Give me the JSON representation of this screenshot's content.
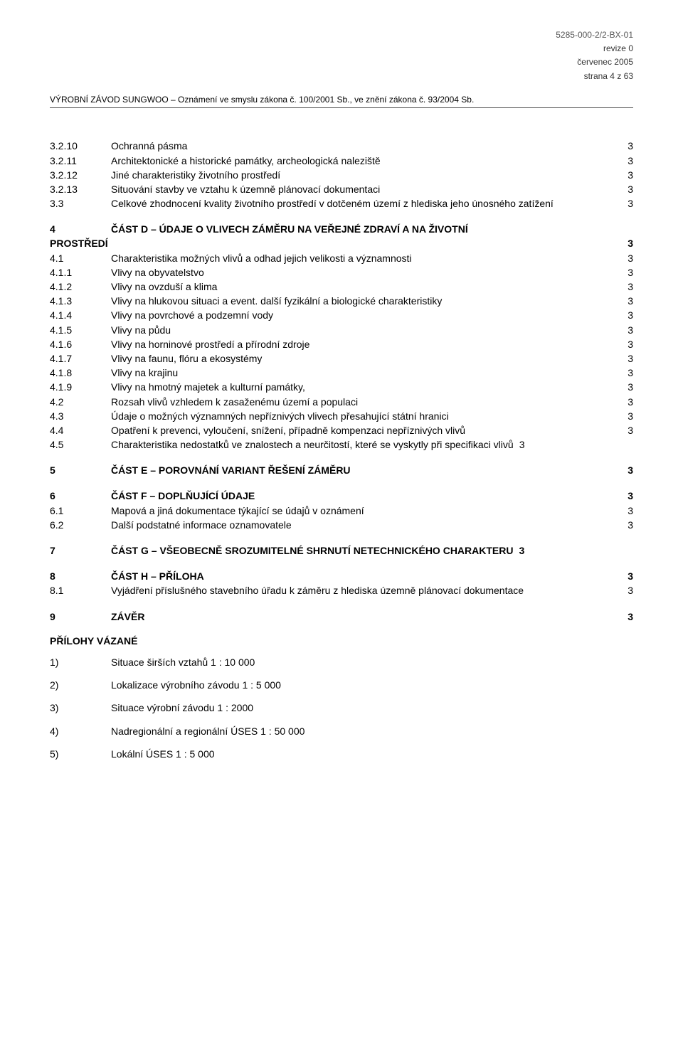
{
  "meta": {
    "doc_id": "5285-000-2/2-BX-01",
    "revision": "revize 0",
    "date": "červenec 2005",
    "page": "strana 4 z 63"
  },
  "header": {
    "title": "VÝROBNÍ ZÁVOD SUNGWOO – Oznámení ve smyslu zákona č. 100/2001 Sb., ve znění zákona č. 93/2004 Sb."
  },
  "toc": [
    {
      "num": "3.2.10",
      "title": "Ochranná pásma",
      "page": "3"
    },
    {
      "num": "3.2.11",
      "title": "Architektonické a historické památky, archeologická naleziště",
      "page": "3"
    },
    {
      "num": "3.2.12",
      "title": "Jiné charakteristiky životního prostředí",
      "page": "3"
    },
    {
      "num": "3.2.13",
      "title": "Situování stavby ve vztahu k územně plánovací dokumentaci",
      "page": "3"
    },
    {
      "num": "3.3",
      "title": "Celkové zhodnocení kvality životního prostředí v dotčeném území z hlediska jeho únosného zatížení",
      "page": "3"
    },
    {
      "gap": "md"
    },
    {
      "num": "4",
      "title_pre": "ČÁST D – ÚDAJE O VLIVECH ZÁMĚRU NA VEŘEJNÉ ZDRAVÍ A NA ŽIVOTNÍ",
      "title_post": "PROSTŘEDÍ",
      "page": "3",
      "bold": true,
      "special": true
    },
    {
      "num": "4.1",
      "title": "Charakteristika možných vlivů a odhad jejich velikosti a významnosti",
      "page": "3"
    },
    {
      "num": "4.1.1",
      "title": "Vlivy na obyvatelstvo",
      "page": "3"
    },
    {
      "num": "4.1.2",
      "title": "Vlivy na ovzduší a klima",
      "page": "3"
    },
    {
      "num": "4.1.3",
      "title": "Vlivy na hlukovou situaci a event. další fyzikální a biologické charakteristiky",
      "page": "3"
    },
    {
      "num": "4.1.4",
      "title": "Vlivy na povrchové a podzemní vody",
      "page": "3"
    },
    {
      "num": "4.1.5",
      "title": "Vlivy na půdu",
      "page": "3"
    },
    {
      "num": "4.1.6",
      "title": "Vlivy na horninové prostředí a přírodní zdroje",
      "page": "3"
    },
    {
      "num": "4.1.7",
      "title": "Vlivy na faunu, flóru a ekosystémy",
      "page": "3"
    },
    {
      "num": "4.1.8",
      "title": "Vlivy na krajinu",
      "page": "3"
    },
    {
      "num": "4.1.9",
      "title": "Vlivy na hmotný majetek a kulturní památky,",
      "page": "3"
    },
    {
      "num": "4.2",
      "title": "Rozsah vlivů vzhledem k zasaženému území a populaci",
      "page": "3"
    },
    {
      "num": "4.3",
      "title": "Údaje o možných významných nepříznivých vlivech přesahující státní hranici",
      "page": "3"
    },
    {
      "num": "4.4",
      "title": "Opatření k prevenci, vyloučení, snížení, případně kompenzaci nepříznivých vlivů",
      "page": "3"
    },
    {
      "num": "4.5",
      "title": "Charakteristika nedostatků ve znalostech a neurčitostí, které se vyskytly při specifikaci vlivů",
      "page": "3",
      "tight": true
    },
    {
      "gap": "md"
    },
    {
      "num": "5",
      "title": "ČÁST E – POROVNÁNÍ VARIANT ŘEŠENÍ ZÁMĚRU",
      "page": "3",
      "bold": true
    },
    {
      "gap": "md"
    },
    {
      "num": "6",
      "title": "ČÁST F – DOPLŇUJÍCÍ ÚDAJE",
      "page": "3",
      "bold": true
    },
    {
      "num": "6.1",
      "title": "Mapová a jiná dokumentace týkající se údajů v oznámení",
      "page": "3"
    },
    {
      "num": "6.2",
      "title": "Další podstatné informace oznamovatele",
      "page": "3"
    },
    {
      "gap": "md"
    },
    {
      "num": "7",
      "title": "ČÁST G – VŠEOBECNĚ SROZUMITELNÉ SHRNUTÍ NETECHNICKÉHO CHARAKTERU",
      "page": "3",
      "bold": true,
      "tight": true
    },
    {
      "gap": "md"
    },
    {
      "num": "8",
      "title": "ČÁST H – PŘÍLOHA",
      "page": "3",
      "bold": true
    },
    {
      "num": "8.1",
      "title": "Vyjádření příslušného stavebního úřadu  k záměru z hlediska územně plánovací dokumentace",
      "page": "3"
    },
    {
      "gap": "md"
    },
    {
      "num": "9",
      "title": "ZÁVĚR",
      "page": "3",
      "bold": true
    }
  ],
  "attachments": {
    "heading": "PŘÍLOHY VÁZANÉ",
    "items": [
      {
        "num": "1)",
        "text": "Situace širších vztahů 1 : 10 000"
      },
      {
        "num": "2)",
        "text": "Lokalizace výrobního závodu  1 : 5 000"
      },
      {
        "num": "3)",
        "text": "Situace výrobní závodu 1 : 2000"
      },
      {
        "num": "4)",
        "text": "Nadregionální a regionální ÚSES 1 : 50 000"
      },
      {
        "num": "5)",
        "text": "Lokální ÚSES 1 : 5 000"
      }
    ]
  }
}
